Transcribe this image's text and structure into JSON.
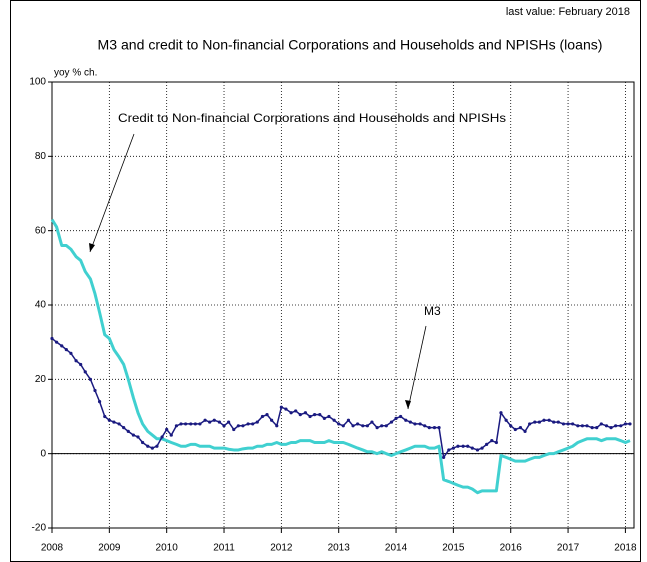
{
  "chart_data": {
    "type": "line",
    "title": "M3 and credit to Non-financial Corporations and Households and NPISHs (loans)",
    "subtitle": "last value: February 2018",
    "y_axis_label": "yoy % ch.",
    "annotations": [
      "Credit to Non-financial Corporations and Households and NPISHs",
      "M3"
    ],
    "xlim": [
      2008,
      2018.15
    ],
    "xticks": [
      2008,
      2009,
      2010,
      2011,
      2012,
      2013,
      2014,
      2015,
      2016,
      2017,
      2018
    ],
    "ylim": [
      -20,
      100
    ],
    "yticks": [
      -20,
      0,
      20,
      40,
      60,
      80,
      100
    ],
    "grid": true,
    "x": [
      2008.0,
      2008.08,
      2008.17,
      2008.25,
      2008.33,
      2008.42,
      2008.5,
      2008.58,
      2008.67,
      2008.75,
      2008.83,
      2008.92,
      2009.0,
      2009.08,
      2009.17,
      2009.25,
      2009.33,
      2009.42,
      2009.5,
      2009.58,
      2009.67,
      2009.75,
      2009.83,
      2009.92,
      2010.0,
      2010.08,
      2010.17,
      2010.25,
      2010.33,
      2010.42,
      2010.5,
      2010.58,
      2010.67,
      2010.75,
      2010.83,
      2010.92,
      2011.0,
      2011.08,
      2011.17,
      2011.25,
      2011.33,
      2011.42,
      2011.5,
      2011.58,
      2011.67,
      2011.75,
      2011.83,
      2011.92,
      2012.0,
      2012.08,
      2012.17,
      2012.25,
      2012.33,
      2012.42,
      2012.5,
      2012.58,
      2012.67,
      2012.75,
      2012.83,
      2012.92,
      2013.0,
      2013.08,
      2013.17,
      2013.25,
      2013.33,
      2013.42,
      2013.5,
      2013.58,
      2013.67,
      2013.75,
      2013.83,
      2013.92,
      2014.0,
      2014.08,
      2014.17,
      2014.25,
      2014.33,
      2014.42,
      2014.5,
      2014.58,
      2014.67,
      2014.75,
      2014.83,
      2014.92,
      2015.0,
      2015.08,
      2015.17,
      2015.25,
      2015.33,
      2015.42,
      2015.5,
      2015.58,
      2015.67,
      2015.75,
      2015.83,
      2015.92,
      2016.0,
      2016.08,
      2016.17,
      2016.25,
      2016.33,
      2016.42,
      2016.5,
      2016.58,
      2016.67,
      2016.75,
      2016.83,
      2016.92,
      2017.0,
      2017.08,
      2017.17,
      2017.25,
      2017.33,
      2017.42,
      2017.5,
      2017.58,
      2017.67,
      2017.75,
      2017.83,
      2017.92,
      2018.0,
      2018.08
    ],
    "series": [
      {
        "name": "Credit to Non-financial Corporations and Households and NPISHs",
        "color": "#40d0d0",
        "width": 3,
        "marker": false,
        "values": [
          63,
          61,
          56,
          56,
          55,
          53,
          52,
          49,
          47,
          43,
          38,
          32,
          31,
          28,
          26,
          24,
          20,
          15,
          11,
          8,
          6,
          5,
          4,
          4,
          3.5,
          3,
          2.5,
          2,
          2,
          2.5,
          2.5,
          2,
          2,
          2,
          1.5,
          1.5,
          1.5,
          1.2,
          1,
          1,
          1.3,
          1.5,
          1.5,
          2,
          2,
          2.5,
          2.5,
          3,
          2.5,
          2.5,
          3,
          3,
          3.5,
          3.5,
          3.5,
          3,
          3,
          3,
          3.5,
          3,
          3,
          3,
          2.5,
          2,
          1.5,
          1,
          0.5,
          0.5,
          0,
          0.5,
          0,
          -0.5,
          0,
          0.5,
          1,
          1.5,
          2,
          2,
          2,
          1.5,
          1.5,
          2,
          -7,
          -7.5,
          -8,
          -8.5,
          -9,
          -9,
          -9.5,
          -10.5,
          -10,
          -10,
          -10,
          -10,
          -0.5,
          -1,
          -1.5,
          -2,
          -2,
          -2,
          -1.5,
          -1,
          -1,
          -0.5,
          0,
          0,
          0.5,
          1,
          1.5,
          2,
          3,
          3.5,
          4,
          4,
          4,
          3.5,
          4,
          4,
          4,
          3.5,
          3,
          3.5
        ]
      },
      {
        "name": "M3",
        "color": "#1a1a80",
        "width": 1.5,
        "marker": true,
        "values": [
          31,
          30,
          29,
          28,
          27,
          25,
          24,
          22,
          20,
          17,
          14,
          10,
          9,
          8.5,
          8,
          7,
          6,
          5,
          4.5,
          3,
          2,
          1.5,
          2,
          4.5,
          6.5,
          5,
          7.5,
          8,
          8,
          8,
          8,
          8,
          9,
          8.5,
          9,
          8.5,
          7.5,
          8.5,
          6.5,
          7.5,
          7.5,
          8,
          8,
          8.5,
          10,
          10.5,
          9,
          7.5,
          12.5,
          12,
          11,
          11.5,
          10.5,
          11,
          10,
          10.5,
          10.5,
          9.5,
          10,
          9,
          8,
          7.5,
          9,
          7.5,
          8,
          7.5,
          7.5,
          8.5,
          7,
          7.5,
          7.5,
          8.5,
          9.5,
          10,
          9,
          8.5,
          8,
          8,
          7.5,
          7,
          7,
          7,
          -1,
          1,
          1.5,
          2,
          2,
          2,
          1.5,
          1,
          1.5,
          2.5,
          3.5,
          3,
          11,
          9,
          7.5,
          6.5,
          7,
          6,
          8,
          8.5,
          8.5,
          9,
          9,
          8.5,
          8.5,
          8,
          8,
          8,
          7.5,
          7.5,
          7.5,
          7,
          7,
          8,
          7.5,
          7,
          7.5,
          7.5,
          8,
          8
        ]
      }
    ]
  }
}
